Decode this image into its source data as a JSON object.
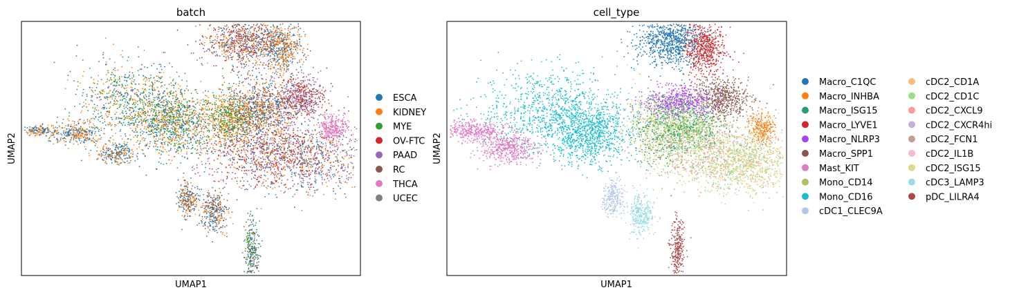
{
  "chart_data": [
    {
      "type": "scatter",
      "title": "batch",
      "xlabel": "UMAP1",
      "ylabel": "UMAP2",
      "grid": false,
      "x_ticks": [],
      "y_ticks": [],
      "legend_position": "right",
      "categories": [
        {
          "name": "ESCA",
          "color": "#1f77b4"
        },
        {
          "name": "KIDNEY",
          "color": "#ff7f0e"
        },
        {
          "name": "MYE",
          "color": "#2ca02c"
        },
        {
          "name": "OV-FTC",
          "color": "#d62728"
        },
        {
          "name": "PAAD",
          "color": "#9467bd"
        },
        {
          "name": "RC",
          "color": "#8c564b"
        },
        {
          "name": "THCA",
          "color": "#e377c2"
        },
        {
          "name": "UCEC",
          "color": "#7f7f7f"
        }
      ],
      "clusters": [
        {
          "x": 0.66,
          "y": 0.92,
          "w": 0.06,
          "h": 0.05,
          "mix": [
            "RC",
            "ESCA",
            "KIDNEY",
            "OV-FTC"
          ]
        },
        {
          "x": 0.77,
          "y": 0.9,
          "w": 0.03,
          "h": 0.05,
          "mix": [
            "KIDNEY",
            "ESCA"
          ]
        },
        {
          "x": 0.82,
          "y": 0.7,
          "w": 0.04,
          "h": 0.04,
          "mix": [
            "OV-FTC",
            "RC",
            "PAAD"
          ]
        },
        {
          "x": 0.33,
          "y": 0.68,
          "w": 0.08,
          "h": 0.08,
          "mix": [
            "KIDNEY",
            "MYE",
            "ESCA"
          ]
        },
        {
          "x": 0.45,
          "y": 0.6,
          "w": 0.05,
          "h": 0.06,
          "mix": [
            "KIDNEY",
            "ESCA",
            "MYE"
          ]
        },
        {
          "x": 0.61,
          "y": 0.62,
          "w": 0.04,
          "h": 0.05,
          "mix": [
            "MYE",
            "KIDNEY"
          ]
        },
        {
          "x": 0.7,
          "y": 0.66,
          "w": 0.05,
          "h": 0.05,
          "mix": [
            "ESCA",
            "KIDNEY",
            "RC"
          ]
        },
        {
          "x": 0.7,
          "y": 0.5,
          "w": 0.1,
          "h": 0.07,
          "mix": [
            "KIDNEY",
            "RC",
            "ESCA",
            "OV-FTC",
            "PAAD"
          ]
        },
        {
          "x": 0.84,
          "y": 0.46,
          "w": 0.1,
          "h": 0.07,
          "mix": [
            "KIDNEY",
            "RC",
            "ESCA",
            "OV-FTC",
            "PAAD"
          ]
        },
        {
          "x": 0.92,
          "y": 0.58,
          "w": 0.02,
          "h": 0.03,
          "mix": [
            "THCA"
          ]
        },
        {
          "x": 0.05,
          "y": 0.57,
          "w": 0.02,
          "h": 0.01,
          "mix": [
            "ESCA",
            "KIDNEY"
          ]
        },
        {
          "x": 0.16,
          "y": 0.56,
          "w": 0.04,
          "h": 0.02,
          "mix": [
            "KIDNEY",
            "ESCA"
          ]
        },
        {
          "x": 0.28,
          "y": 0.48,
          "w": 0.03,
          "h": 0.02,
          "mix": [
            "KIDNEY",
            "ESCA"
          ]
        },
        {
          "x": 0.49,
          "y": 0.3,
          "w": 0.015,
          "h": 0.035,
          "mix": [
            "ESCA",
            "RC",
            "KIDNEY"
          ]
        },
        {
          "x": 0.57,
          "y": 0.25,
          "w": 0.02,
          "h": 0.04,
          "mix": [
            "ESCA",
            "RC",
            "KIDNEY"
          ]
        },
        {
          "x": 0.68,
          "y": 0.1,
          "w": 0.01,
          "h": 0.06,
          "mix": [
            "ESCA",
            "RC",
            "MYE"
          ]
        }
      ]
    },
    {
      "type": "scatter",
      "title": "cell_type",
      "xlabel": "UMAP1",
      "ylabel": "UMAP2",
      "grid": false,
      "x_ticks": [],
      "y_ticks": [],
      "legend_position": "right",
      "categories": [
        {
          "name": "Macro_C1QC",
          "color": "#1f77b4"
        },
        {
          "name": "Macro_INHBA",
          "color": "#ff7f0e"
        },
        {
          "name": "Macro_ISG15",
          "color": "#279e68"
        },
        {
          "name": "Macro_LYVE1",
          "color": "#d62728"
        },
        {
          "name": "Macro_NLRP3",
          "color": "#aa40fc"
        },
        {
          "name": "Macro_SPP1",
          "color": "#8c564b"
        },
        {
          "name": "Mast_KIT",
          "color": "#e377c2"
        },
        {
          "name": "Mono_CD14",
          "color": "#b5bd61"
        },
        {
          "name": "Mono_CD16",
          "color": "#17becf"
        },
        {
          "name": "cDC1_CLEC9A",
          "color": "#aec7e8"
        },
        {
          "name": "cDC2_CD1A",
          "color": "#ffbb78"
        },
        {
          "name": "cDC2_CD1C",
          "color": "#98df8a"
        },
        {
          "name": "cDC2_CXCL9",
          "color": "#ff9896"
        },
        {
          "name": "cDC2_CXCR4hi",
          "color": "#c5b0d5"
        },
        {
          "name": "cDC2_FCN1",
          "color": "#c49c94"
        },
        {
          "name": "cDC2_IL1B",
          "color": "#f7b6d2"
        },
        {
          "name": "cDC2_ISG15",
          "color": "#dbdb8d"
        },
        {
          "name": "cDC3_LAMP3",
          "color": "#9edae5"
        },
        {
          "name": "pDC_LILRA4",
          "color": "#ad494a"
        }
      ],
      "clusters": [
        {
          "x": 0.66,
          "y": 0.92,
          "w": 0.05,
          "h": 0.05,
          "mix": [
            "Macro_C1QC"
          ]
        },
        {
          "x": 0.76,
          "y": 0.89,
          "w": 0.03,
          "h": 0.05,
          "mix": [
            "Macro_LYVE1"
          ]
        },
        {
          "x": 0.81,
          "y": 0.7,
          "w": 0.04,
          "h": 0.04,
          "mix": [
            "Macro_SPP1"
          ]
        },
        {
          "x": 0.68,
          "y": 0.68,
          "w": 0.05,
          "h": 0.03,
          "mix": [
            "Macro_NLRP3"
          ]
        },
        {
          "x": 0.93,
          "y": 0.58,
          "w": 0.02,
          "h": 0.03,
          "mix": [
            "Macro_INHBA"
          ]
        },
        {
          "x": 0.3,
          "y": 0.65,
          "w": 0.1,
          "h": 0.08,
          "mix": [
            "Mono_CD16"
          ]
        },
        {
          "x": 0.42,
          "y": 0.56,
          "w": 0.06,
          "h": 0.06,
          "mix": [
            "Mono_CD16"
          ]
        },
        {
          "x": 0.63,
          "y": 0.58,
          "w": 0.05,
          "h": 0.07,
          "mix": [
            "Mono_CD14",
            "cDC2_ISG15",
            "Macro_ISG15"
          ]
        },
        {
          "x": 0.72,
          "y": 0.58,
          "w": 0.05,
          "h": 0.05,
          "mix": [
            "Macro_ISG15",
            "Mono_CD14",
            "cDC2_CD1C"
          ]
        },
        {
          "x": 0.78,
          "y": 0.48,
          "w": 0.09,
          "h": 0.06,
          "mix": [
            "cDC2_CD1C",
            "cDC2_ISG15",
            "cDC2_CXCL9",
            "cDC2_FCN1"
          ]
        },
        {
          "x": 0.88,
          "y": 0.44,
          "w": 0.08,
          "h": 0.06,
          "mix": [
            "cDC2_CD1C",
            "cDC2_ISG15",
            "cDC2_CD1A"
          ]
        },
        {
          "x": 0.08,
          "y": 0.57,
          "w": 0.05,
          "h": 0.02,
          "mix": [
            "Mast_KIT"
          ]
        },
        {
          "x": 0.18,
          "y": 0.5,
          "w": 0.04,
          "h": 0.03,
          "mix": [
            "Mast_KIT"
          ]
        },
        {
          "x": 0.49,
          "y": 0.3,
          "w": 0.015,
          "h": 0.035,
          "mix": [
            "cDC1_CLEC9A"
          ]
        },
        {
          "x": 0.57,
          "y": 0.24,
          "w": 0.02,
          "h": 0.04,
          "mix": [
            "cDC3_LAMP3"
          ]
        },
        {
          "x": 0.68,
          "y": 0.1,
          "w": 0.01,
          "h": 0.06,
          "mix": [
            "pDC_LILRA4"
          ]
        }
      ]
    }
  ]
}
